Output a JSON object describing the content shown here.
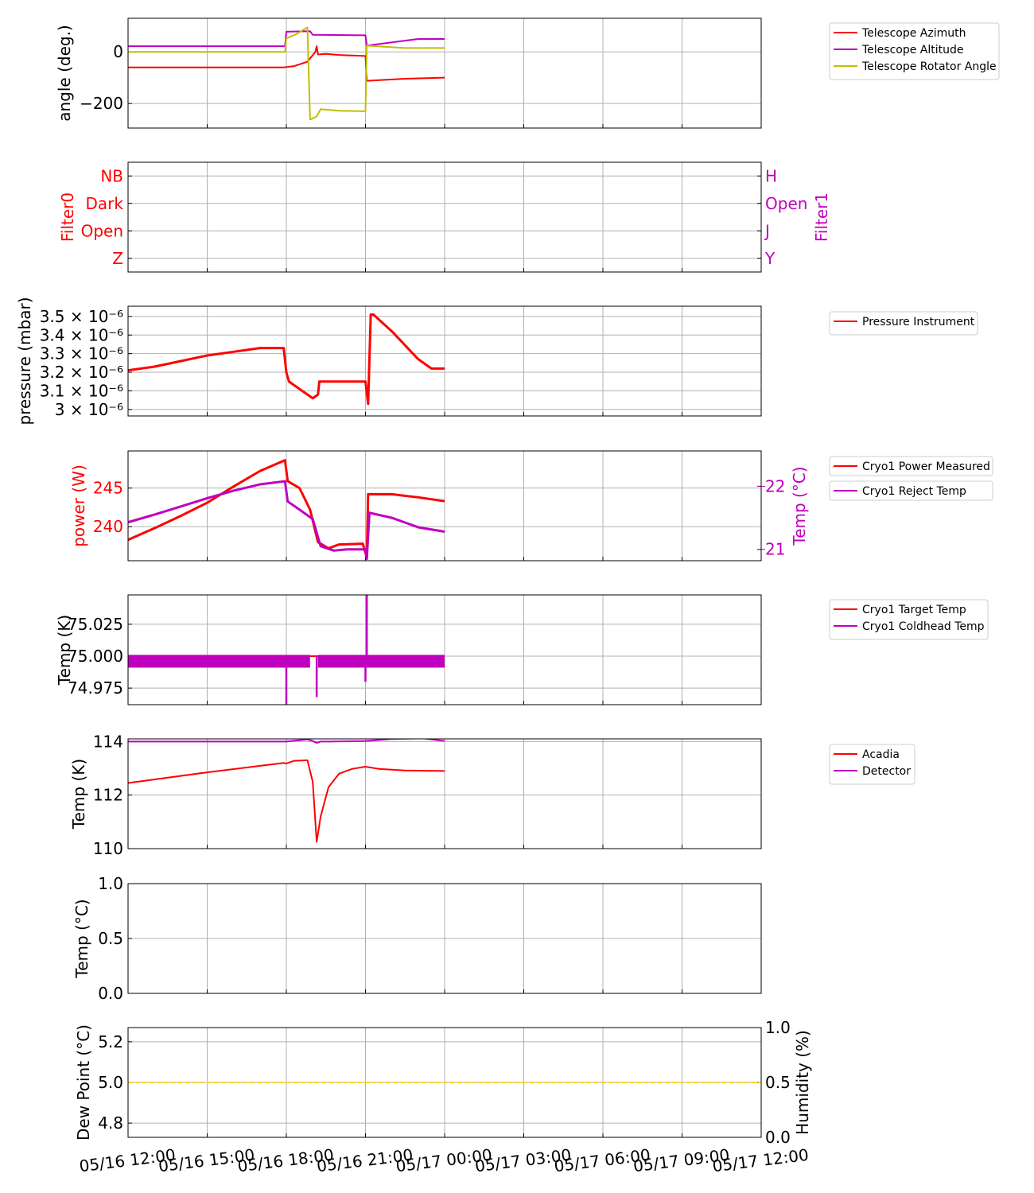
{
  "colors": {
    "red": "#ff0000",
    "magenta": "#bf00bf",
    "olive": "#bfbf00",
    "gold": "#ffd700",
    "grid": "#b0b0b0"
  },
  "x_ticks": [
    "05/16 12:00",
    "05/16 15:00",
    "05/16 18:00",
    "05/16 21:00",
    "05/17 00:00",
    "05/17 03:00",
    "05/17 06:00",
    "05/17 09:00",
    "05/17 12:00"
  ],
  "x_range_hours": [
    0,
    24
  ],
  "chart_data": [
    {
      "id": "angle",
      "type": "line",
      "ylabel": "angle (deg.)",
      "ylim": [
        -295,
        130
      ],
      "yticks": [
        {
          "v": 0,
          "label": "0"
        },
        {
          "v": -200,
          "label": "−200"
        }
      ],
      "grid": true,
      "legend": "top-right (outside)",
      "series": [
        {
          "name": "Telescope Azimuth",
          "color": "#ff0000",
          "x": [
            0,
            5.9,
            6.3,
            6.8,
            7.1,
            7.15,
            7.2,
            7.5,
            8,
            9,
            9.05,
            10.5,
            12
          ],
          "y": [
            -60,
            -60,
            -55,
            -38,
            0,
            22,
            -10,
            -8,
            -12,
            -16,
            -112,
            -104,
            -100
          ]
        },
        {
          "name": "Telescope Altitude",
          "color": "#bf00bf",
          "x": [
            0,
            5.95,
            6.0,
            6.9,
            7.0,
            9,
            9.05,
            11,
            12
          ],
          "y": [
            22,
            22,
            78,
            80,
            66,
            64,
            24,
            50,
            50
          ]
        },
        {
          "name": "Telescope Rotator Angle",
          "color": "#bfbf00",
          "x": [
            0,
            5.95,
            6.0,
            6.4,
            6.8,
            6.9,
            7.15,
            7.3,
            8,
            9,
            9.05,
            10.5,
            12
          ],
          "y": [
            0,
            0,
            52,
            70,
            95,
            -262,
            -250,
            -222,
            -228,
            -230,
            24,
            15,
            15
          ]
        }
      ]
    },
    {
      "id": "filter",
      "type": "line",
      "ylabel": "Filter0",
      "ylabel_right": "Filter1",
      "ylim": [
        -0.5,
        3.5
      ],
      "yticks": [
        {
          "v": 3,
          "label": "NB"
        },
        {
          "v": 2,
          "label": "Dark"
        },
        {
          "v": 1,
          "label": "Open"
        },
        {
          "v": 0,
          "label": "Z"
        }
      ],
      "yticks_right": [
        {
          "v": 3,
          "label": "H"
        },
        {
          "v": 2,
          "label": "Open"
        },
        {
          "v": 1,
          "label": "J"
        },
        {
          "v": 0,
          "label": "Y"
        }
      ],
      "grid": true,
      "series": []
    },
    {
      "id": "pressure",
      "type": "line",
      "ylabel": "pressure (mbar)",
      "ylim": [
        2.965,
        3.555
      ],
      "yticks": [
        {
          "v": 3.5,
          "label": "3.5 × 10⁻⁶"
        },
        {
          "v": 3.4,
          "label": "3.4 × 10⁻⁶"
        },
        {
          "v": 3.3,
          "label": "3.3 × 10⁻⁶"
        },
        {
          "v": 3.2,
          "label": "3.2 × 10⁻⁶"
        },
        {
          "v": 3.1,
          "label": "3.1 × 10⁻⁶"
        },
        {
          "v": 3.0,
          "label": "3 × 10⁻⁶"
        }
      ],
      "y_scale_note": "values ×10⁻⁶ mbar",
      "grid": true,
      "legend": "top-right (outside)",
      "series": [
        {
          "name": "Pressure Instrument",
          "color": "#ff0000",
          "x": [
            0,
            1,
            2,
            3,
            4,
            5,
            5.9,
            6.0,
            6.1,
            6.5,
            7.0,
            7.2,
            7.25,
            8,
            9.0,
            9.1,
            9.2,
            9.3,
            10,
            11,
            11.5,
            12
          ],
          "y": [
            3.21,
            3.23,
            3.26,
            3.29,
            3.31,
            3.33,
            3.33,
            3.2,
            3.15,
            3.11,
            3.06,
            3.08,
            3.15,
            3.15,
            3.15,
            3.03,
            3.51,
            3.51,
            3.42,
            3.27,
            3.22,
            3.22
          ]
        }
      ]
    },
    {
      "id": "cryo_power",
      "type": "line",
      "ylabel": "power (W)",
      "ylabel_right": "Temp (°C)",
      "ylim": [
        235.6,
        249.8
      ],
      "ylim_right": [
        20.82,
        22.56
      ],
      "yticks": [
        {
          "v": 245,
          "label": "245"
        },
        {
          "v": 240,
          "label": "240"
        }
      ],
      "yticks_right": [
        {
          "v": 22,
          "label": "22"
        },
        {
          "v": 21,
          "label": "21"
        }
      ],
      "grid": true,
      "legend": "top-right (outside)",
      "series": [
        {
          "name": "Cryo1 Power Measured",
          "color": "#ff0000",
          "axis": "left",
          "x": [
            0,
            1,
            2,
            3,
            4,
            5,
            5.95,
            6.05,
            6.5,
            6.9,
            7.2,
            7.6,
            8,
            8.9,
            9.05,
            9.1,
            10,
            11,
            12
          ],
          "y": [
            238.3,
            239.8,
            241.4,
            243.1,
            245.2,
            247.2,
            248.6,
            245.9,
            245.0,
            242.2,
            238.0,
            237.2,
            237.7,
            237.8,
            236.0,
            244.2,
            244.2,
            243.8,
            243.3
          ]
        },
        {
          "name": "Cryo1 Reject Temp",
          "color": "#bf00bf",
          "axis": "right",
          "x": [
            0,
            1,
            2,
            3,
            4,
            5,
            5.95,
            6.05,
            6.5,
            7.0,
            7.3,
            7.8,
            8.3,
            9.0,
            9.05,
            9.15,
            10,
            11,
            12
          ],
          "y": [
            21.43,
            21.55,
            21.68,
            21.81,
            21.93,
            22.03,
            22.08,
            21.76,
            21.63,
            21.48,
            21.05,
            20.98,
            21.0,
            21.0,
            20.85,
            21.58,
            21.5,
            21.35,
            21.28
          ]
        }
      ]
    },
    {
      "id": "cryo_temp",
      "type": "line",
      "ylabel": "Temp (K)",
      "ylim": [
        74.962,
        75.048
      ],
      "yticks": [
        {
          "v": 75.025,
          "label": "75.025"
        },
        {
          "v": 75.0,
          "label": "75.000"
        },
        {
          "v": 74.975,
          "label": "74.975"
        }
      ],
      "grid": true,
      "legend": "top-right (outside)",
      "series": [
        {
          "name": "Cryo1 Target Temp",
          "color": "#ff0000",
          "x": [
            0,
            12
          ],
          "y": [
            75.0,
            75.0
          ]
        },
        {
          "name": "Cryo1 Coldhead Temp",
          "color": "#bf00bf",
          "noise_band": [
            74.991,
            75.001
          ],
          "band_segments": [
            [
              0,
              6.9
            ],
            [
              7.2,
              12
            ]
          ],
          "spikes": [
            {
              "x": 6.0,
              "y": 74.962
            },
            {
              "x": 7.15,
              "y": 74.968
            },
            {
              "x": 9.0,
              "y": 74.98
            },
            {
              "x": 9.05,
              "y": 75.048
            }
          ]
        }
      ]
    },
    {
      "id": "acadia",
      "type": "line",
      "ylabel": "Temp (K)",
      "ylim": [
        110,
        114.1
      ],
      "yticks": [
        {
          "v": 114,
          "label": "114"
        },
        {
          "v": 112,
          "label": "112"
        },
        {
          "v": 110,
          "label": "110"
        }
      ],
      "grid": true,
      "legend": "top-right (outside)",
      "series": [
        {
          "name": "Acadia",
          "color": "#ff0000",
          "x": [
            0,
            3,
            5.9,
            6.0,
            6.3,
            6.8,
            7.0,
            7.15,
            7.3,
            7.6,
            8.0,
            8.5,
            9.0,
            9.5,
            10.5,
            12
          ],
          "y": [
            112.45,
            112.85,
            113.2,
            113.18,
            113.28,
            113.3,
            112.5,
            110.25,
            111.2,
            112.3,
            112.8,
            112.98,
            113.06,
            112.98,
            112.92,
            112.9
          ],
          "smooth": true
        },
        {
          "name": "Detector",
          "color": "#bf00bf",
          "x": [
            0,
            6,
            6.8,
            7.0,
            7.15,
            7.3,
            7.6,
            9,
            10,
            11.2,
            12
          ],
          "y": [
            114.0,
            114.0,
            114.08,
            114.02,
            113.95,
            114.0,
            114.0,
            114.02,
            114.1,
            114.12,
            114.02
          ]
        }
      ]
    },
    {
      "id": "temp_c",
      "type": "line",
      "ylabel": "Temp (°C)",
      "ylim": [
        0,
        1
      ],
      "yticks": [
        {
          "v": 1,
          "label": "1.0"
        },
        {
          "v": 0.5,
          "label": "0.5"
        },
        {
          "v": 0,
          "label": "0.0"
        }
      ],
      "grid": true,
      "series": []
    },
    {
      "id": "dewpoint",
      "type": "line",
      "ylabel": "Dew Point (°C)",
      "ylabel_right": "Humidity (%)",
      "ylim": [
        4.73,
        5.27
      ],
      "ylim_right": [
        0,
        1
      ],
      "yticks": [
        {
          "v": 5.2,
          "label": "5.2"
        },
        {
          "v": 5.0,
          "label": "5.0"
        },
        {
          "v": 4.8,
          "label": "4.8"
        }
      ],
      "yticks_right": [
        {
          "v": 1,
          "label": "1.0"
        },
        {
          "v": 0.5,
          "label": "0.5"
        },
        {
          "v": 0,
          "label": "0.0"
        }
      ],
      "grid": true,
      "series": [
        {
          "color": "#ffd700",
          "dashed": true,
          "x": [
            0,
            24
          ],
          "y": [
            5.0,
            5.0
          ]
        }
      ]
    }
  ]
}
